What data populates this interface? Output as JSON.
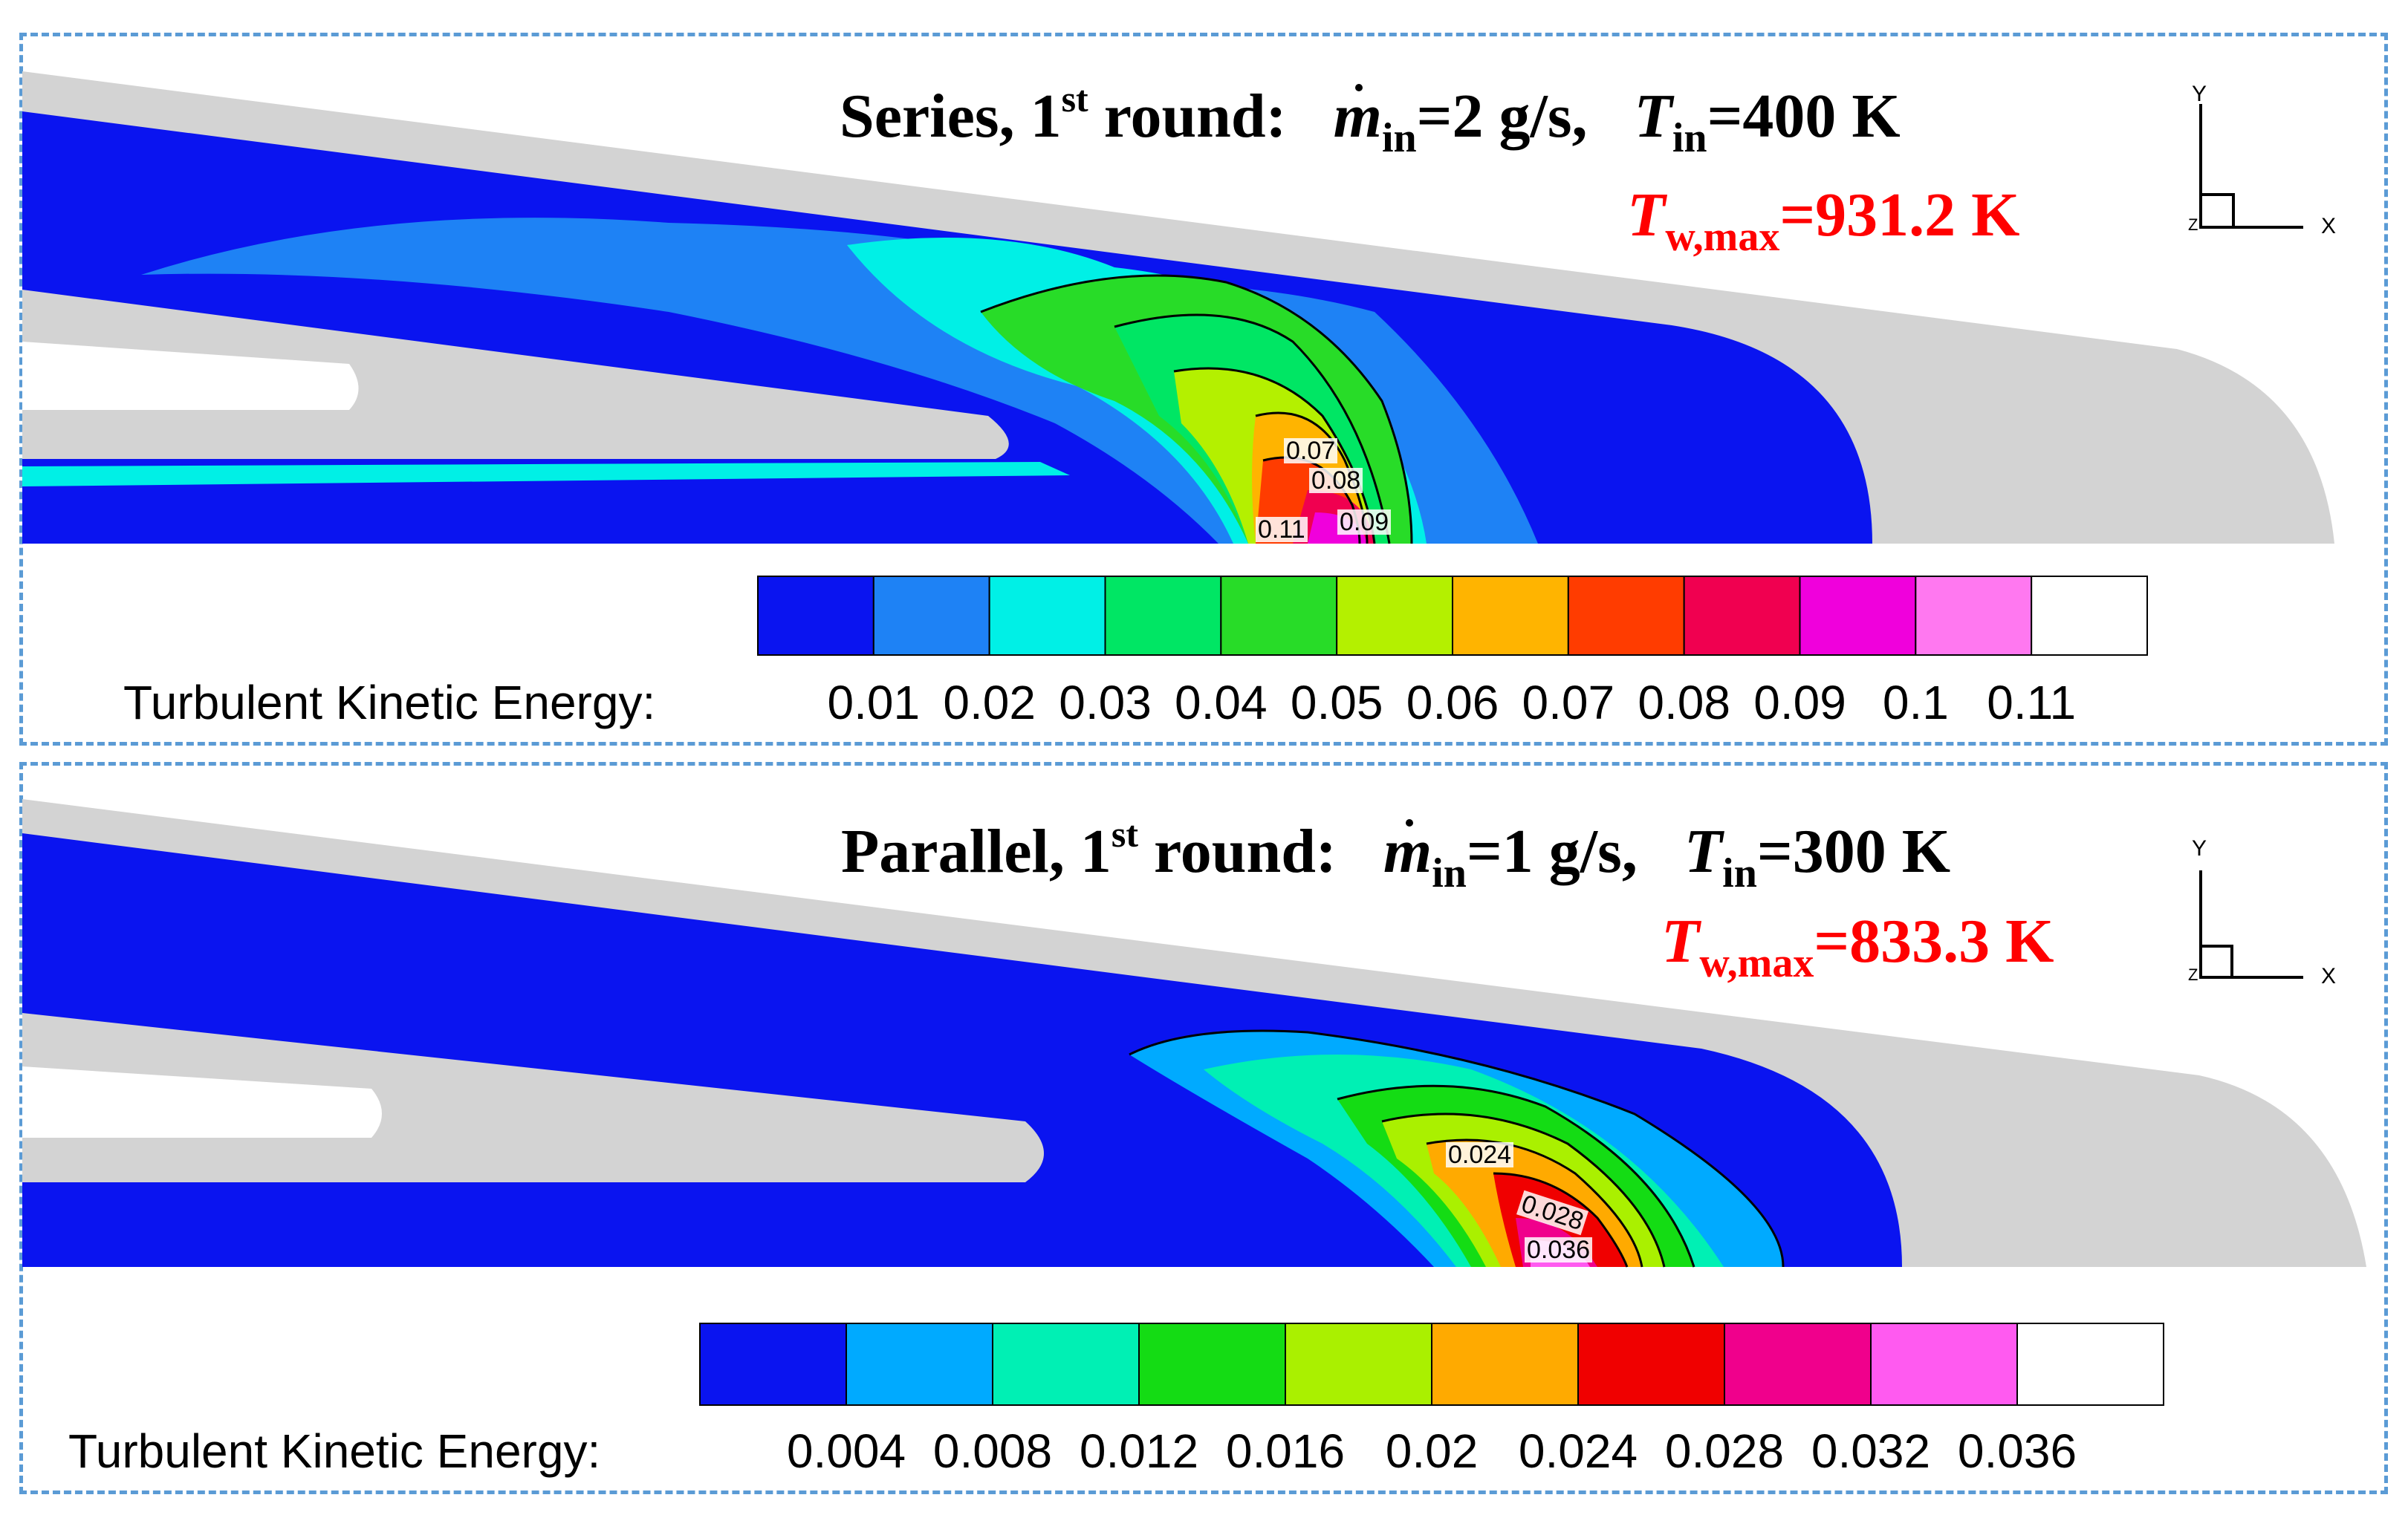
{
  "panels": [
    {
      "title": {
        "prefix": "Series, 1",
        "sup": "st",
        "round": " round:",
        "m": "m",
        "m_sub": "in",
        "m_value": "=2 g/s,",
        "t": "T",
        "t_sub": "in",
        "t_value": "=400 K"
      },
      "tw": {
        "t": "T",
        "sub": "w,max",
        "value": "=931.2 K"
      },
      "axis": {
        "y": "Y",
        "x": "X",
        "z": "Z"
      },
      "colorbar": {
        "label": "Turbulent Kinetic Energy:",
        "colors": [
          "#0a14f0",
          "#1e82f5",
          "#00f0e6",
          "#00e664",
          "#28dc28",
          "#b4f000",
          "#ffb400",
          "#ff3c00",
          "#f00050",
          "#f000dc",
          "#ff78f0",
          "#ffffff"
        ],
        "ticks": [
          "0.01",
          "0.02",
          "0.03",
          "0.04",
          "0.05",
          "0.06",
          "0.07",
          "0.08",
          "0.09",
          "0.1",
          "0.11"
        ]
      },
      "contour_labels": [
        "0.07",
        "0.08",
        "0.11",
        "0.09"
      ]
    },
    {
      "title": {
        "prefix": "Parallel, 1",
        "sup": "st",
        "round": " round:",
        "m": "m",
        "m_sub": "in",
        "m_value": "=1 g/s,",
        "t": "T",
        "t_sub": "in",
        "t_value": "=300 K"
      },
      "tw": {
        "t": "T",
        "sub": "w,max",
        "value": "=833.3 K"
      },
      "axis": {
        "y": "Y",
        "x": "X",
        "z": "Z"
      },
      "colorbar": {
        "label": "Turbulent Kinetic Energy:",
        "colors": [
          "#0a14f0",
          "#00aaff",
          "#00f0b4",
          "#14dc14",
          "#aaf000",
          "#ffaa00",
          "#f00000",
          "#f0008c",
          "#ff5af0",
          "#ffffff"
        ],
        "ticks": [
          "0.004",
          "0.008",
          "0.012",
          "0.016",
          "0.02",
          "0.024",
          "0.028",
          "0.032",
          "0.036"
        ]
      },
      "contour_labels": [
        "0.024",
        "0.028",
        "0.036"
      ]
    }
  ]
}
